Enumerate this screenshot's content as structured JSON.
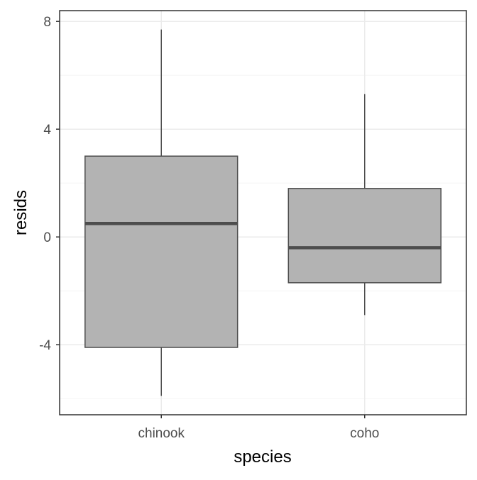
{
  "chart_data": {
    "type": "boxplot",
    "xlabel": "species",
    "ylabel": "resids",
    "categories": [
      "chinook",
      "coho"
    ],
    "boxes": [
      {
        "category": "chinook",
        "whisker_low": -5.9,
        "q1": -4.1,
        "median": 0.5,
        "q3": 3.0,
        "whisker_high": 7.7
      },
      {
        "category": "coho",
        "whisker_low": -2.9,
        "q1": -1.7,
        "median": -0.4,
        "q3": 1.8,
        "whisker_high": 5.3
      }
    ],
    "yticks": [
      -4,
      0,
      4,
      8
    ],
    "ytick_labels": [
      "-4",
      "0",
      "4",
      "8"
    ],
    "ylim": [
      -6.6,
      8.4
    ],
    "grid": true,
    "colors": {
      "box_fill": "#b3b3b3",
      "box_stroke": "#4d4d4d",
      "median": "#4d4d4d",
      "grid_major": "#ebebeb",
      "grid_minor": "#f5f5f5",
      "panel_border": "#333333",
      "tick_text": "#4d4d4d",
      "axis_title": "#000000"
    }
  }
}
